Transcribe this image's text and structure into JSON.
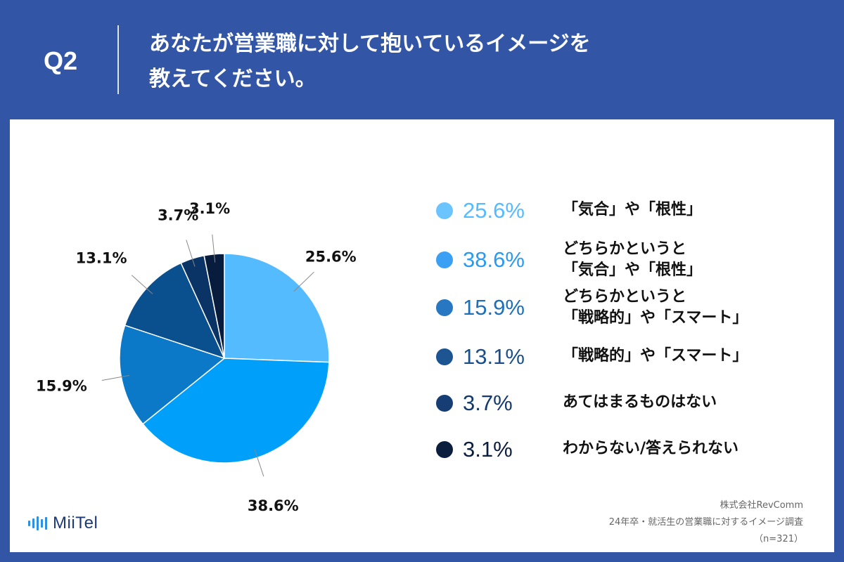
{
  "header": {
    "q_label": "Q2",
    "question_line1": "あなたが営業職に対して抱いているイメージを",
    "question_line2": "教えてください。"
  },
  "chart_data": {
    "type": "pie",
    "start": "top, clockwise",
    "slices": [
      {
        "value": 25.6,
        "label": "25.6%",
        "color": "#55bbff",
        "legend_lines": [
          "「気合」や「根性」"
        ]
      },
      {
        "value": 38.6,
        "label": "38.6%",
        "color": "#00a0fa",
        "legend_lines": [
          "どちらかというと",
          "「気合」や「根性」"
        ]
      },
      {
        "value": 15.9,
        "label": "15.9%",
        "color": "#0b78c8",
        "legend_lines": [
          "どちらかというと",
          "「戦略的」や「スマート」"
        ]
      },
      {
        "value": 13.1,
        "label": "13.1%",
        "color": "#0a4f8e",
        "legend_lines": [
          "「戦略的」や「スマート」"
        ]
      },
      {
        "value": 3.7,
        "label": "3.7%",
        "color": "#0a3466",
        "legend_lines": [
          "あてはまるものはない"
        ]
      },
      {
        "value": 3.1,
        "label": "3.1%",
        "color": "#081c3e",
        "legend_lines": [
          "わからない/答えられない"
        ]
      }
    ]
  },
  "legend_colors": {
    "text": [
      "#55bbff",
      "#2a9af0",
      "#1e6fba",
      "#1b4f8a",
      "#14396e",
      "#0c1e3e"
    ],
    "dots": [
      "#6cc4ff",
      "#3ba0f4",
      "#2777c2",
      "#1d5592",
      "#163e75",
      "#0c1e3e"
    ]
  },
  "footer": {
    "logo_text": "MiiTel",
    "source_line1": "株式会社RevComm",
    "source_line2": "24年卒・就活生の営業職に対するイメージ調査",
    "source_line3": "（n=321）"
  },
  "colors": {
    "background": "#3255a5",
    "panel": "#ffffff"
  }
}
